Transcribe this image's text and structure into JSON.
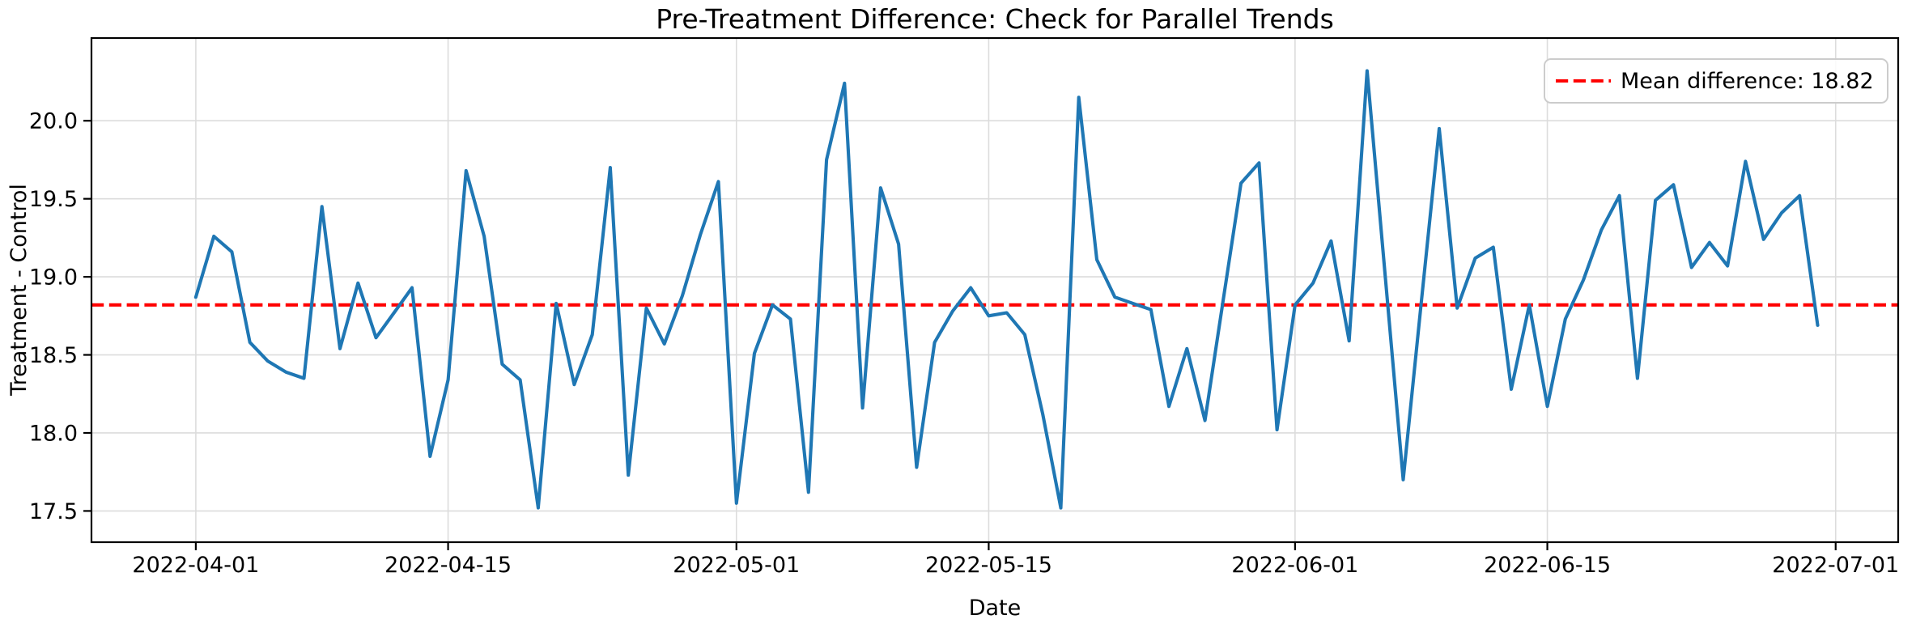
{
  "figure": {
    "title": "Pre-Treatment Difference: Check for Parallel Trends",
    "xlabel": "Date",
    "ylabel": "Treatment - Control",
    "legend": {
      "label": "Mean difference: 18.82"
    },
    "colors": {
      "series_line": "#1f77b4",
      "mean_line": "#ff0000",
      "grid": "#dcdcdc",
      "spine": "#000000",
      "background": "#ffffff",
      "legend_border": "#cccccc"
    }
  },
  "chart_data": {
    "type": "line",
    "title": "Pre-Treatment Difference: Check for Parallel Trends",
    "xlabel": "Date",
    "ylabel": "Treatment - Control",
    "grid": true,
    "legend_position": "upper right",
    "mean_difference": 18.82,
    "ylim": [
      17.3,
      20.53
    ],
    "xlim_day_offsets": [
      -5.79,
      94.47
    ],
    "y_ticks": [
      17.5,
      18.0,
      18.5,
      19.0,
      19.5,
      20.0
    ],
    "y_tick_labels": [
      "17.5",
      "18.0",
      "18.5",
      "19.0",
      "19.5",
      "20.0"
    ],
    "x_tick_labels": [
      "2022-04-01",
      "2022-04-15",
      "2022-05-01",
      "2022-05-15",
      "2022-06-01",
      "2022-06-15",
      "2022-07-01"
    ],
    "x_tick_day_offsets": [
      0,
      14,
      30,
      44,
      61,
      75,
      91
    ],
    "series": [
      {
        "name": "Treatment - Control",
        "start_date": "2022-04-01",
        "x_unit": "days since 2022-04-01",
        "values": [
          18.87,
          19.26,
          19.16,
          18.58,
          18.46,
          18.39,
          18.35,
          19.45,
          18.54,
          18.96,
          18.61,
          18.77,
          18.93,
          17.85,
          18.34,
          19.68,
          19.26,
          18.44,
          18.34,
          17.52,
          18.83,
          18.31,
          18.63,
          19.7,
          17.73,
          18.8,
          18.57,
          18.88,
          19.27,
          19.61,
          17.55,
          18.51,
          18.82,
          18.73,
          17.62,
          19.75,
          20.24,
          18.16,
          19.57,
          19.21,
          17.78,
          18.58,
          18.78,
          18.93,
          18.75,
          18.77,
          18.63,
          18.12,
          17.52,
          20.15,
          19.11,
          18.87,
          18.83,
          18.79,
          18.17,
          18.54,
          18.08,
          18.84,
          19.6,
          19.73,
          18.02,
          18.82,
          18.96,
          19.23,
          18.59,
          20.32,
          19.01,
          17.7,
          18.83,
          19.95,
          18.8,
          19.12,
          19.19,
          18.28,
          18.82,
          18.17,
          18.73,
          18.98,
          19.3,
          19.52,
          18.35,
          19.49,
          19.59,
          19.06,
          19.22,
          19.07,
          19.74,
          19.24,
          19.41,
          19.52,
          18.69
        ]
      }
    ]
  }
}
